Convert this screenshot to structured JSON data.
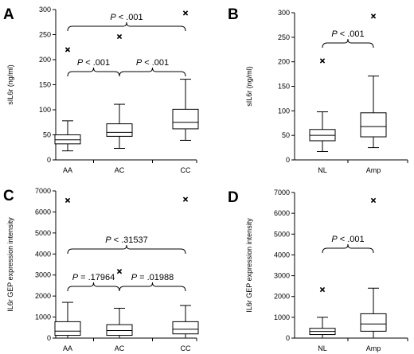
{
  "chart_data": [
    {
      "panel": "A",
      "type": "box",
      "ylabel": "sIL6r (ng/ml)",
      "ylim": [
        0,
        300
      ],
      "yticks": [
        0,
        50,
        100,
        150,
        200,
        250,
        300
      ],
      "categories": [
        "AA",
        "AC",
        "CC"
      ],
      "boxes": [
        {
          "min": 18,
          "q1": 32,
          "median": 40,
          "q3": 50,
          "max": 78,
          "outliers": [
            220
          ]
        },
        {
          "min": 23,
          "q1": 47,
          "median": 55,
          "q3": 72,
          "max": 111,
          "outliers": [
            246
          ]
        },
        {
          "min": 39,
          "q1": 62,
          "median": 75,
          "q3": 101,
          "max": 161,
          "outliers": [
            293
          ]
        }
      ],
      "comparisons": [
        {
          "from": 0,
          "to": 1,
          "level": 1,
          "p_symbol": "P",
          "p_text": " < .001"
        },
        {
          "from": 1,
          "to": 2,
          "level": 1,
          "p_symbol": "P",
          "p_text": " < .001"
        },
        {
          "from": 0,
          "to": 2,
          "level": 2,
          "p_symbol": "P",
          "p_text": " < .001"
        }
      ]
    },
    {
      "panel": "B",
      "type": "box",
      "ylabel": "sIL6r (ng/ml)",
      "ylim": [
        0,
        300
      ],
      "yticks": [
        0,
        50,
        100,
        150,
        200,
        250,
        300
      ],
      "categories": [
        "NL",
        "Amp"
      ],
      "boxes": [
        {
          "min": 17,
          "q1": 39,
          "median": 50,
          "q3": 62,
          "max": 98,
          "outliers": [
            202
          ]
        },
        {
          "min": 25,
          "q1": 47,
          "median": 68,
          "q3": 96,
          "max": 171,
          "outliers": [
            293
          ]
        }
      ],
      "comparisons": [
        {
          "from": 0,
          "to": 1,
          "level": 1,
          "p_symbol": "P",
          "p_text": " < .001"
        }
      ]
    },
    {
      "panel": "C",
      "type": "box",
      "ylabel": "IL6r GEP expression intensity",
      "ylim": [
        0,
        7000
      ],
      "yticks": [
        0,
        1000,
        2000,
        3000,
        4000,
        5000,
        6000,
        7000
      ],
      "categories": [
        "AA",
        "AC",
        "CC"
      ],
      "boxes": [
        {
          "min": 0,
          "q1": 130,
          "median": 330,
          "q3": 780,
          "max": 1700,
          "outliers": [
            6550
          ]
        },
        {
          "min": 0,
          "q1": 130,
          "median": 360,
          "q3": 640,
          "max": 1420,
          "outliers": [
            3170
          ]
        },
        {
          "min": 0,
          "q1": 200,
          "median": 420,
          "q3": 780,
          "max": 1550,
          "outliers": [
            6600
          ]
        }
      ],
      "comparisons": [
        {
          "from": 0,
          "to": 1,
          "level": 1,
          "p_symbol": "P",
          "p_text": " = .17964"
        },
        {
          "from": 1,
          "to": 2,
          "level": 1,
          "p_symbol": "P",
          "p_text": " = .01988"
        },
        {
          "from": 0,
          "to": 2,
          "level": 2,
          "p_symbol": "P",
          "p_text": " < .31537"
        }
      ]
    },
    {
      "panel": "D",
      "type": "box",
      "ylabel": "IL6r GEP expression intensity",
      "ylim": [
        0,
        7000
      ],
      "yticks": [
        0,
        1000,
        2000,
        3000,
        4000,
        5000,
        6000,
        7000
      ],
      "categories": [
        "NL",
        "Amp"
      ],
      "boxes": [
        {
          "min": 0,
          "q1": 170,
          "median": 320,
          "q3": 470,
          "max": 1000,
          "outliers": [
            2330
          ]
        },
        {
          "min": 0,
          "q1": 330,
          "median": 680,
          "q3": 1170,
          "max": 2400,
          "outliers": [
            6620
          ]
        }
      ],
      "comparisons": [
        {
          "from": 0,
          "to": 1,
          "level": 1,
          "p_symbol": "P",
          "p_text": " < .001"
        }
      ]
    }
  ]
}
